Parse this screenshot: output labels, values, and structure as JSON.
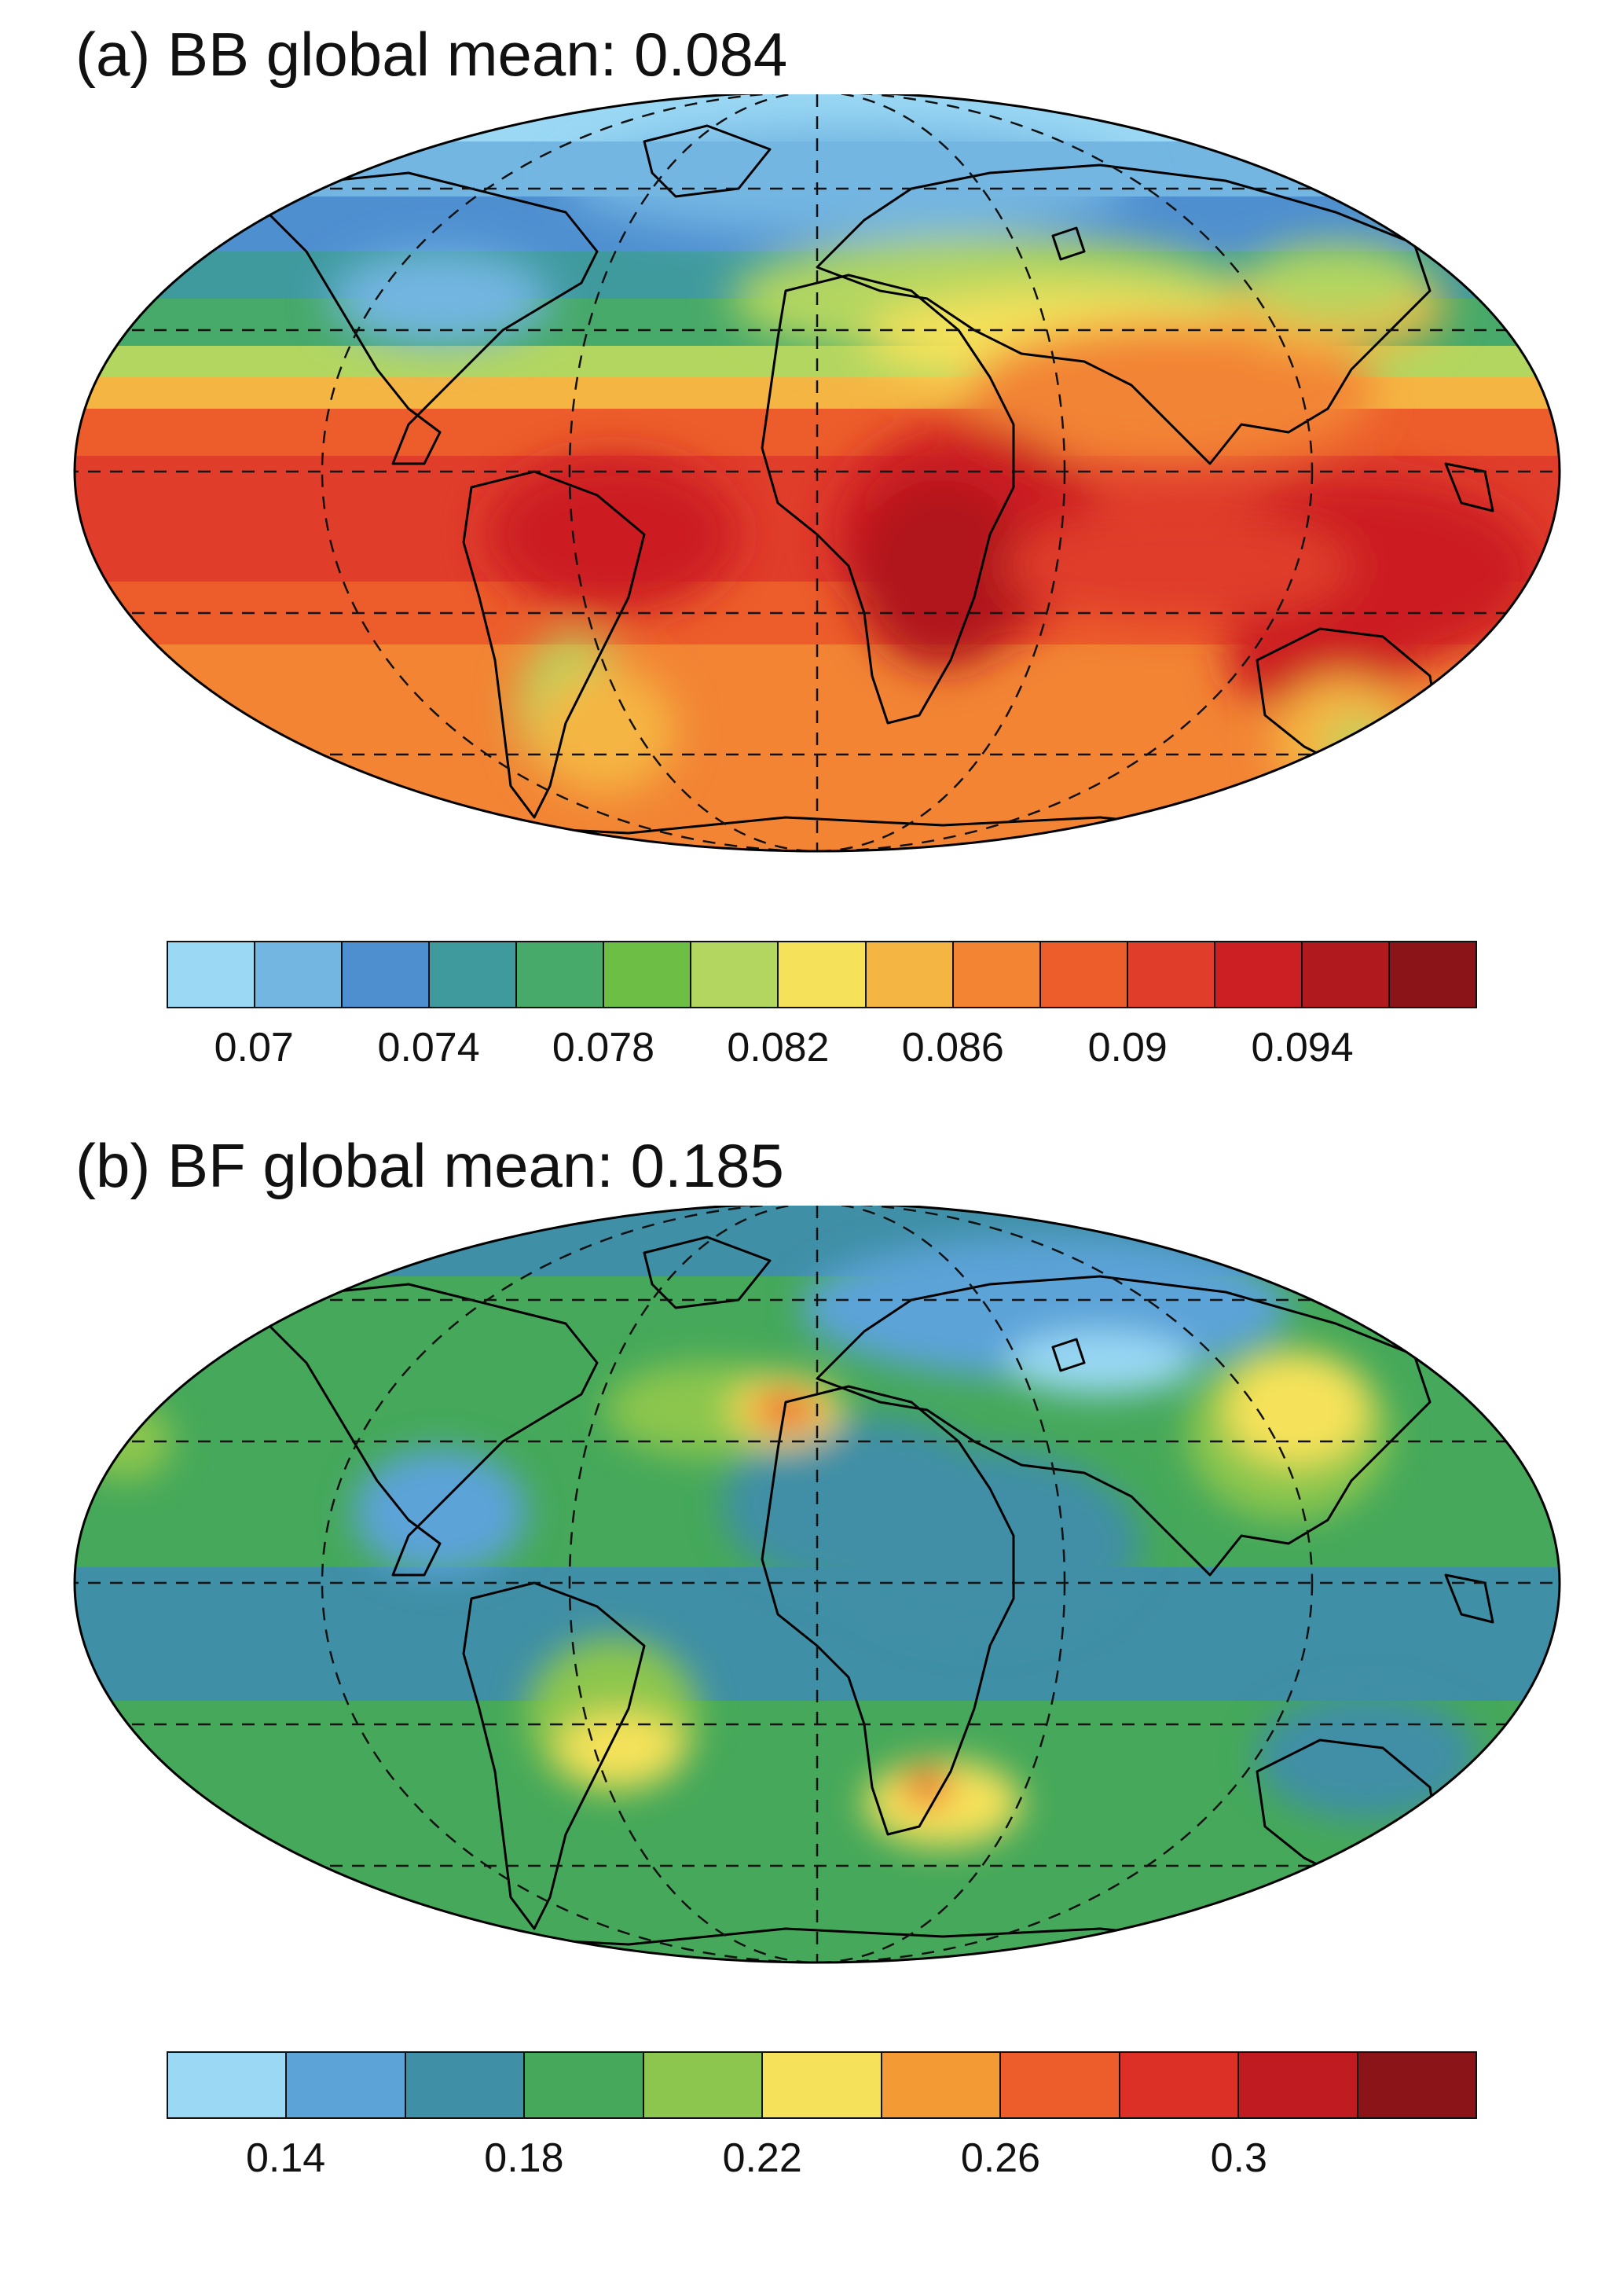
{
  "panels": [
    {
      "id": "a",
      "title": "(a) BB global mean: 0.084",
      "colorbar": {
        "colors": [
          "#9ad8f4",
          "#73b6e2",
          "#4e8fd0",
          "#3f9a9e",
          "#47a96a",
          "#6dbe45",
          "#b3d660",
          "#f5e25a",
          "#f5b543",
          "#f28434",
          "#ec5d2b",
          "#e03d2b",
          "#cc1f24",
          "#b0191e",
          "#8b1418"
        ],
        "ticks": [
          {
            "label": "0.07",
            "boundary": 1
          },
          {
            "label": "0.074",
            "boundary": 3
          },
          {
            "label": "0.078",
            "boundary": 5
          },
          {
            "label": "0.082",
            "boundary": 7
          },
          {
            "label": "0.086",
            "boundary": 9
          },
          {
            "label": "0.09",
            "boundary": 11
          },
          {
            "label": "0.094",
            "boundary": 13
          }
        ]
      }
    },
    {
      "id": "b",
      "title": "(b) BF global mean: 0.185",
      "colorbar": {
        "colors": [
          "#9ad8f4",
          "#5ca3d8",
          "#3f8fa6",
          "#45a85a",
          "#8cc64e",
          "#f6e25a",
          "#f39a35",
          "#ec5d2b",
          "#dc2f26",
          "#c01b20",
          "#8b1418"
        ],
        "ticks": [
          {
            "label": "0.14",
            "boundary": 1
          },
          {
            "label": "0.18",
            "boundary": 3
          },
          {
            "label": "0.22",
            "boundary": 5
          },
          {
            "label": "0.26",
            "boundary": 7
          },
          {
            "label": "0.3",
            "boundary": 9
          }
        ]
      }
    }
  ]
}
